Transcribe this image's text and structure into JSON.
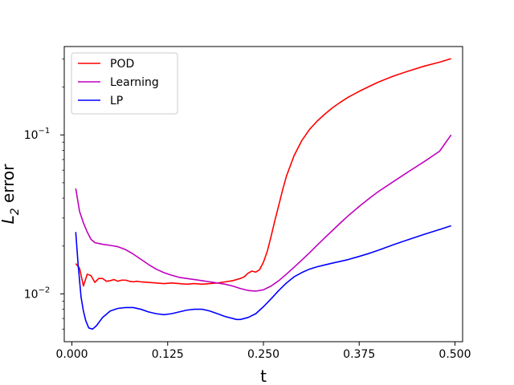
{
  "chart_data": {
    "type": "line",
    "title": "",
    "xlabel": "t",
    "ylabel_main": "L",
    "ylabel_sub": "2",
    "ylabel_suffix": " error",
    "xlim": [
      -0.01,
      0.51
    ],
    "ylim": [
      0.005,
      0.36
    ],
    "yscale": "log",
    "grid": false,
    "legend_position": "top-left",
    "x_ticks": [
      {
        "value": 0.0,
        "label": "0.000"
      },
      {
        "value": 0.125,
        "label": "0.125"
      },
      {
        "value": 0.25,
        "label": "0.250"
      },
      {
        "value": 0.375,
        "label": "0.375"
      },
      {
        "value": 0.5,
        "label": "0.500"
      }
    ],
    "y_ticks": [
      {
        "value": 0.01,
        "base": "10",
        "exp": "−2"
      },
      {
        "value": 0.1,
        "base": "10",
        "exp": "−1"
      }
    ],
    "series": [
      {
        "name": "POD",
        "color": "#ff0000",
        "points": [
          [
            0.005,
            0.0155
          ],
          [
            0.01,
            0.0145
          ],
          [
            0.015,
            0.0112
          ],
          [
            0.02,
            0.0133
          ],
          [
            0.025,
            0.013
          ],
          [
            0.03,
            0.0118
          ],
          [
            0.035,
            0.0125
          ],
          [
            0.04,
            0.0125
          ],
          [
            0.045,
            0.012
          ],
          [
            0.05,
            0.0121
          ],
          [
            0.055,
            0.0123
          ],
          [
            0.06,
            0.012
          ],
          [
            0.065,
            0.0122
          ],
          [
            0.07,
            0.0122
          ],
          [
            0.075,
            0.012
          ],
          [
            0.08,
            0.0119
          ],
          [
            0.085,
            0.012
          ],
          [
            0.09,
            0.0119
          ],
          [
            0.1,
            0.0118
          ],
          [
            0.11,
            0.0117
          ],
          [
            0.12,
            0.0116
          ],
          [
            0.13,
            0.0117
          ],
          [
            0.14,
            0.0116
          ],
          [
            0.15,
            0.0115
          ],
          [
            0.16,
            0.0116
          ],
          [
            0.17,
            0.0115
          ],
          [
            0.18,
            0.0116
          ],
          [
            0.19,
            0.0117
          ],
          [
            0.2,
            0.0119
          ],
          [
            0.21,
            0.0121
          ],
          [
            0.22,
            0.0125
          ],
          [
            0.225,
            0.0128
          ],
          [
            0.23,
            0.0135
          ],
          [
            0.235,
            0.0139
          ],
          [
            0.24,
            0.0137
          ],
          [
            0.245,
            0.0142
          ],
          [
            0.25,
            0.0158
          ],
          [
            0.255,
            0.0185
          ],
          [
            0.26,
            0.023
          ],
          [
            0.265,
            0.029
          ],
          [
            0.27,
            0.036
          ],
          [
            0.275,
            0.045
          ],
          [
            0.28,
            0.055
          ],
          [
            0.29,
            0.074
          ],
          [
            0.3,
            0.092
          ],
          [
            0.31,
            0.108
          ],
          [
            0.32,
            0.122
          ],
          [
            0.33,
            0.135
          ],
          [
            0.34,
            0.148
          ],
          [
            0.35,
            0.16
          ],
          [
            0.36,
            0.172
          ],
          [
            0.375,
            0.188
          ],
          [
            0.39,
            0.204
          ],
          [
            0.4,
            0.215
          ],
          [
            0.42,
            0.235
          ],
          [
            0.44,
            0.253
          ],
          [
            0.46,
            0.271
          ],
          [
            0.48,
            0.287
          ],
          [
            0.495,
            0.302
          ]
        ]
      },
      {
        "name": "Learning",
        "color": "#bf00bf",
        "points": [
          [
            0.005,
            0.046
          ],
          [
            0.01,
            0.033
          ],
          [
            0.015,
            0.028
          ],
          [
            0.02,
            0.0245
          ],
          [
            0.025,
            0.022
          ],
          [
            0.03,
            0.021
          ],
          [
            0.04,
            0.0205
          ],
          [
            0.05,
            0.0202
          ],
          [
            0.06,
            0.0198
          ],
          [
            0.07,
            0.019
          ],
          [
            0.08,
            0.0178
          ],
          [
            0.09,
            0.0165
          ],
          [
            0.1,
            0.0153
          ],
          [
            0.11,
            0.0143
          ],
          [
            0.12,
            0.0136
          ],
          [
            0.13,
            0.0131
          ],
          [
            0.14,
            0.0127
          ],
          [
            0.15,
            0.0125
          ],
          [
            0.16,
            0.0123
          ],
          [
            0.17,
            0.0121
          ],
          [
            0.18,
            0.0119
          ],
          [
            0.19,
            0.0117
          ],
          [
            0.2,
            0.0115
          ],
          [
            0.21,
            0.0112
          ],
          [
            0.22,
            0.0108
          ],
          [
            0.23,
            0.0105
          ],
          [
            0.24,
            0.0104
          ],
          [
            0.25,
            0.0106
          ],
          [
            0.26,
            0.0112
          ],
          [
            0.27,
            0.0121
          ],
          [
            0.28,
            0.0133
          ],
          [
            0.29,
            0.0147
          ],
          [
            0.3,
            0.0163
          ],
          [
            0.31,
            0.0181
          ],
          [
            0.32,
            0.0202
          ],
          [
            0.33,
            0.0225
          ],
          [
            0.34,
            0.025
          ],
          [
            0.35,
            0.0278
          ],
          [
            0.36,
            0.0308
          ],
          [
            0.375,
            0.0355
          ],
          [
            0.39,
            0.0405
          ],
          [
            0.4,
            0.044
          ],
          [
            0.42,
            0.051
          ],
          [
            0.44,
            0.059
          ],
          [
            0.46,
            0.068
          ],
          [
            0.48,
            0.079
          ],
          [
            0.495,
            0.1
          ]
        ]
      },
      {
        "name": "LP",
        "color": "#0000ff",
        "points": [
          [
            0.005,
            0.0245
          ],
          [
            0.008,
            0.0155
          ],
          [
            0.012,
            0.0095
          ],
          [
            0.015,
            0.0078
          ],
          [
            0.018,
            0.0068
          ],
          [
            0.022,
            0.0061
          ],
          [
            0.027,
            0.006
          ],
          [
            0.032,
            0.0063
          ],
          [
            0.04,
            0.0071
          ],
          [
            0.05,
            0.0078
          ],
          [
            0.06,
            0.0081
          ],
          [
            0.07,
            0.0082
          ],
          [
            0.08,
            0.0082
          ],
          [
            0.09,
            0.008
          ],
          [
            0.1,
            0.0077
          ],
          [
            0.11,
            0.0075
          ],
          [
            0.12,
            0.0074
          ],
          [
            0.13,
            0.0075
          ],
          [
            0.14,
            0.0077
          ],
          [
            0.15,
            0.0079
          ],
          [
            0.16,
            0.008
          ],
          [
            0.17,
            0.008
          ],
          [
            0.18,
            0.0078
          ],
          [
            0.19,
            0.0075
          ],
          [
            0.2,
            0.0072
          ],
          [
            0.21,
            0.007
          ],
          [
            0.215,
            0.0069
          ],
          [
            0.22,
            0.0069
          ],
          [
            0.23,
            0.0071
          ],
          [
            0.24,
            0.0075
          ],
          [
            0.25,
            0.0083
          ],
          [
            0.26,
            0.0093
          ],
          [
            0.27,
            0.0105
          ],
          [
            0.28,
            0.0117
          ],
          [
            0.29,
            0.0128
          ],
          [
            0.3,
            0.0136
          ],
          [
            0.31,
            0.0143
          ],
          [
            0.32,
            0.0148
          ],
          [
            0.33,
            0.0152
          ],
          [
            0.34,
            0.0156
          ],
          [
            0.35,
            0.016
          ],
          [
            0.36,
            0.0164
          ],
          [
            0.375,
            0.0172
          ],
          [
            0.39,
            0.0181
          ],
          [
            0.4,
            0.0188
          ],
          [
            0.42,
            0.0204
          ],
          [
            0.44,
            0.022
          ],
          [
            0.46,
            0.0237
          ],
          [
            0.48,
            0.0254
          ],
          [
            0.495,
            0.0268
          ]
        ]
      }
    ]
  }
}
